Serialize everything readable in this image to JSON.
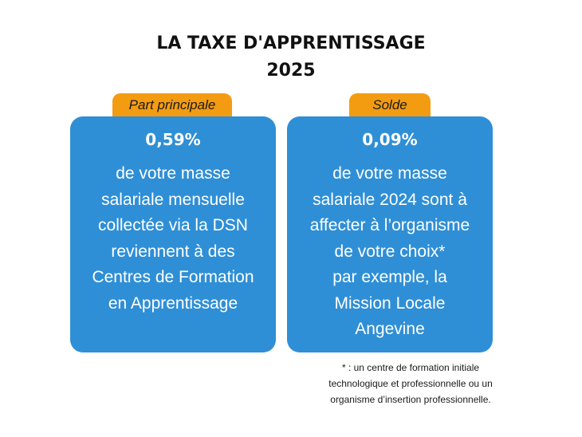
{
  "title": {
    "line1": "LA TAXE D'APPRENTISSAGE",
    "line2": "2025"
  },
  "cards": [
    {
      "tab_label": "Part principale",
      "percentage": "0,59%",
      "lines": [
        "de votre masse",
        "salariale mensuelle",
        "collectée via la DSN",
        "reviennent à des",
        "Centres de Formation",
        "en Apprentissage"
      ]
    },
    {
      "tab_label": "Solde",
      "percentage": "0,09%",
      "lines": [
        "de votre masse",
        "salariale 2024 sont à",
        "affecter à l’organisme",
        "de votre choix*",
        "par exemple, la",
        "Mission Locale",
        "Angevine"
      ]
    }
  ],
  "footnote": {
    "lines": [
      "* : un centre de formation initiale",
      "technologique et professionnelle ou un",
      "organisme d’insertion professionnelle."
    ]
  },
  "colors": {
    "card_blue": "#2f8fd6",
    "tab_orange": "#f39c12"
  }
}
